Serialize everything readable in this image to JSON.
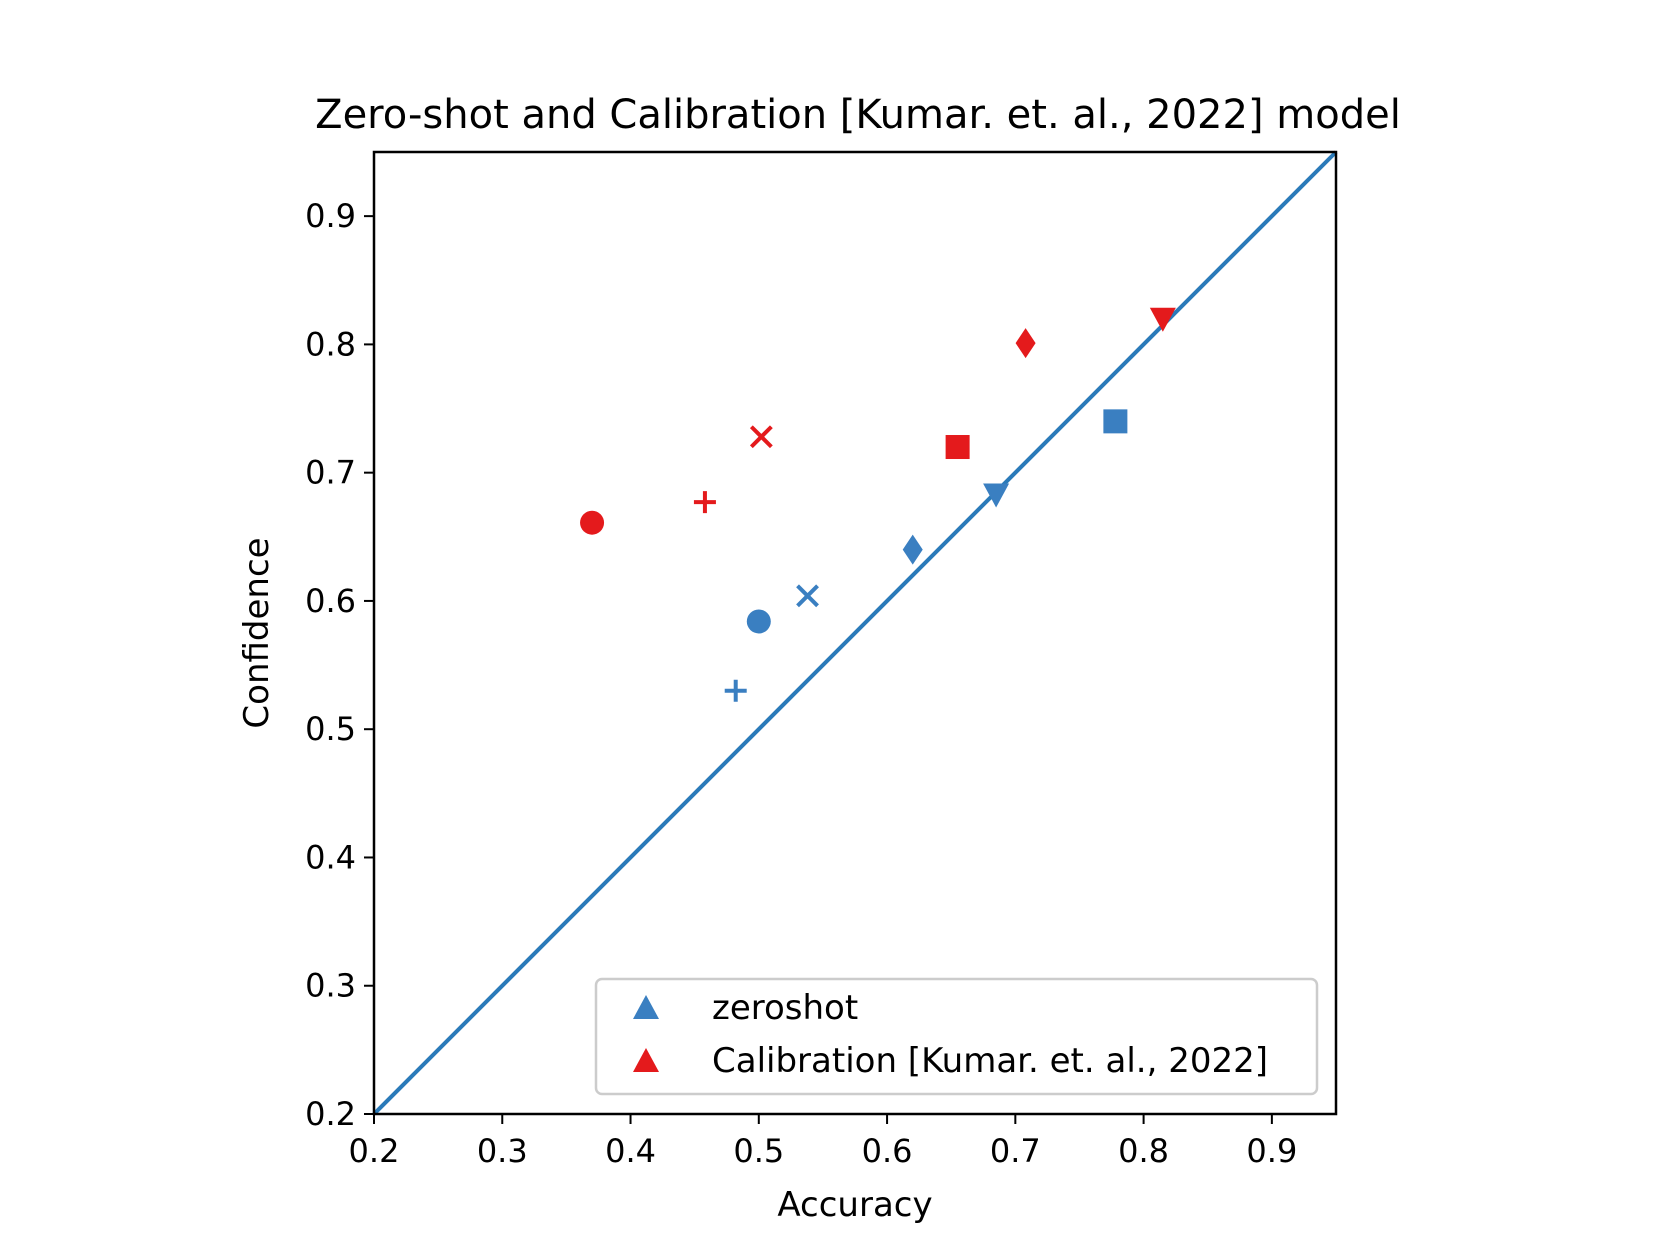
{
  "chart_data": {
    "type": "scatter",
    "title": "Zero-shot and Calibration [Kumar. et. al., 2022] model",
    "xlabel": "Accuracy",
    "ylabel": "Confidence",
    "xlim": [
      0.2,
      0.95
    ],
    "ylim": [
      0.2,
      0.95
    ],
    "xticks": [
      "0.2",
      "0.3",
      "0.4",
      "0.5",
      "0.6",
      "0.7",
      "0.8",
      "0.9"
    ],
    "yticks": [
      "0.2",
      "0.3",
      "0.4",
      "0.5",
      "0.6",
      "0.7",
      "0.8",
      "0.9"
    ],
    "grid": false,
    "legend_position": "lower-right",
    "reference_line": {
      "from": [
        0.2,
        0.2
      ],
      "to": [
        0.95,
        0.95
      ],
      "color": "#2a7ab9"
    },
    "series": [
      {
        "name": "zeroshot",
        "color": "#3a7fc1",
        "points": [
          {
            "x": 0.5,
            "y": 0.584,
            "marker": "circle"
          },
          {
            "x": 0.482,
            "y": 0.53,
            "marker": "plus"
          },
          {
            "x": 0.538,
            "y": 0.604,
            "marker": "x"
          },
          {
            "x": 0.62,
            "y": 0.64,
            "marker": "diamond"
          },
          {
            "x": 0.685,
            "y": 0.683,
            "marker": "triangle-down"
          },
          {
            "x": 0.778,
            "y": 0.74,
            "marker": "square"
          }
        ]
      },
      {
        "name": "Calibration [Kumar. et. al., 2022]",
        "color": "#e41a1c",
        "points": [
          {
            "x": 0.37,
            "y": 0.661,
            "marker": "circle"
          },
          {
            "x": 0.458,
            "y": 0.677,
            "marker": "plus"
          },
          {
            "x": 0.502,
            "y": 0.728,
            "marker": "x"
          },
          {
            "x": 0.655,
            "y": 0.72,
            "marker": "square"
          },
          {
            "x": 0.708,
            "y": 0.801,
            "marker": "diamond"
          },
          {
            "x": 0.815,
            "y": 0.82,
            "marker": "triangle-down"
          }
        ]
      }
    ]
  }
}
